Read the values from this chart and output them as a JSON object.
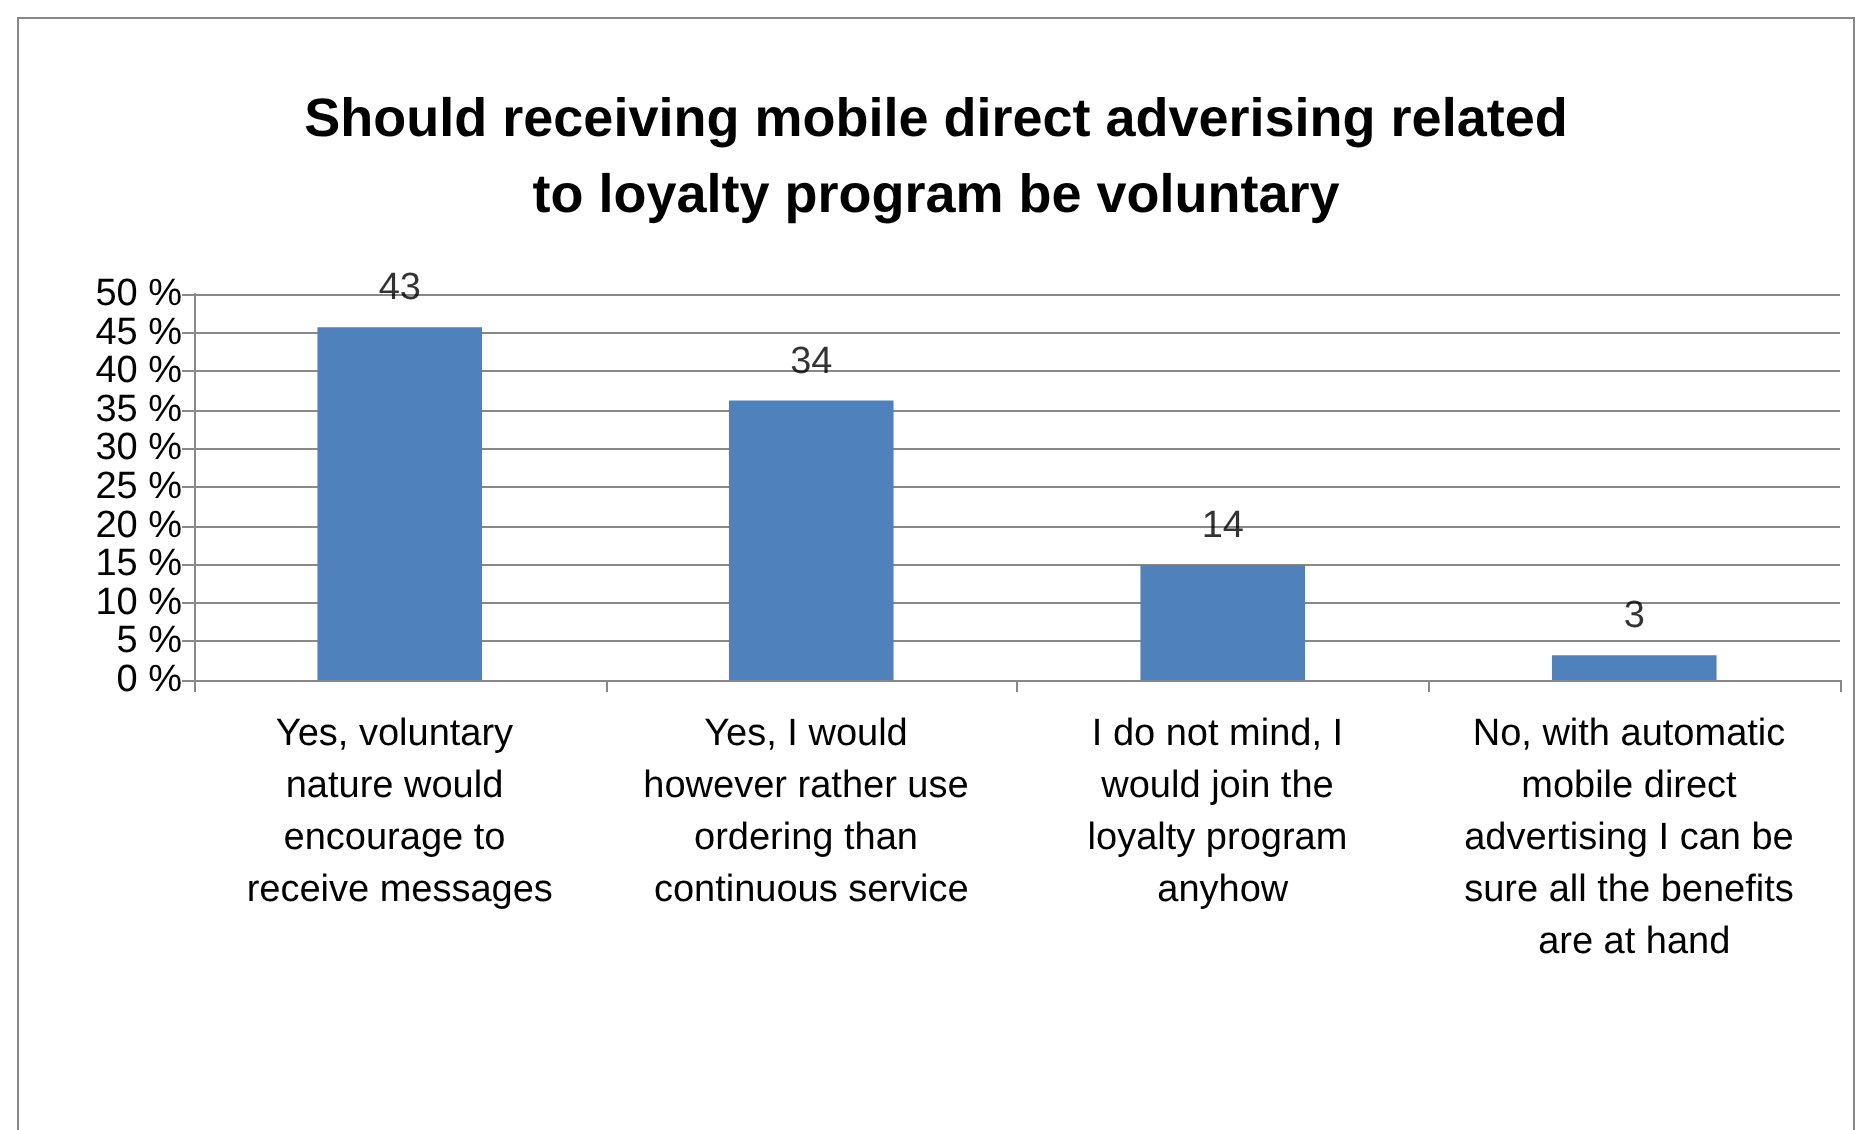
{
  "chart_data": {
    "type": "bar",
    "title": "Should receiving mobile direct adverising related\nto loyalty program be voluntary",
    "categories": [
      "Yes, voluntary nature would encourage to receive messages",
      "Yes, I would however rather use ordering than continuous service",
      "I do not mind, I would join the loyalty program anyhow",
      "No, with automatic mobile direct advertising I can be sure all the benefits are at hand"
    ],
    "values": [
      45.7,
      36.2,
      14.9,
      3.2
    ],
    "annotations": [
      {
        "text": "43",
        "x": "Yes, voluntary nature would encourage to receive messages",
        "y": 45.7
      },
      {
        "text": "34",
        "x": "Yes, I would however rather use ordering than continuous service",
        "y": 36.2
      },
      {
        "text": "14",
        "x": "I do not mind, I would join the loyalty program anyhow",
        "y": 14.9
      },
      {
        "text": "3",
        "x": "No, with automatic mobile direct advertising I can be sure all the benefits are at hand",
        "y": 3.2
      }
    ],
    "color": "#4f81bd",
    "ylim": [
      0,
      50
    ],
    "yticks": [
      {
        "value": 0,
        "label": "0 %"
      },
      {
        "value": 5,
        "label": "5 %"
      },
      {
        "value": 10,
        "label": "10 %"
      },
      {
        "value": 15,
        "label": "15 %"
      },
      {
        "value": 20,
        "label": "20 %"
      },
      {
        "value": 25,
        "label": "25 %"
      },
      {
        "value": 30,
        "label": "30 %"
      },
      {
        "value": 35,
        "label": "35 %"
      },
      {
        "value": 40,
        "label": "40 %"
      },
      {
        "value": 45,
        "label": "45 %"
      },
      {
        "value": 50,
        "label": "50 %"
      }
    ],
    "grid": "y"
  }
}
